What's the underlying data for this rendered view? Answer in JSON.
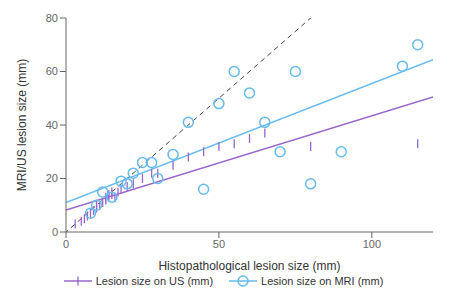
{
  "chart_data": {
    "type": "scatter",
    "xlabel": "Histopathological lesion size (mm)",
    "ylabel": "MRI/US lesion size (mm)",
    "xlim": [
      0,
      120
    ],
    "ylim": [
      0,
      80
    ],
    "xticks": [
      0,
      50,
      100
    ],
    "yticks": [
      0,
      20,
      40,
      60,
      80
    ],
    "legend": "bottom",
    "series": [
      {
        "name": "Lesion size on US (mm)",
        "color": "#9966cc",
        "marker": "vertical_line",
        "x": [
          3,
          5,
          6,
          7,
          8,
          9,
          10,
          10,
          11,
          12,
          13,
          13,
          14,
          14,
          15,
          15,
          16,
          17,
          18,
          20,
          22,
          25,
          28,
          30,
          35,
          40,
          45,
          50,
          55,
          60,
          65,
          80,
          115
        ],
        "values": [
          3,
          4,
          5,
          6,
          7,
          8,
          9,
          10,
          10,
          11,
          12,
          13,
          13,
          14,
          14,
          15,
          13,
          15,
          16,
          17,
          18,
          20,
          22,
          22,
          25,
          28,
          30,
          32,
          33,
          35,
          37,
          32,
          33
        ],
        "fit": {
          "x": [
            0,
            120
          ],
          "values": [
            8.1679,
            50.4875
          ]
        }
      },
      {
        "name": "Lesion size on MRI (mm)",
        "color": "#66bbee",
        "marker": "open_circle",
        "x": [
          8,
          10,
          12,
          15,
          18,
          20,
          22,
          25,
          28,
          30,
          35,
          40,
          45,
          50,
          55,
          60,
          65,
          70,
          75,
          80,
          90,
          110,
          115
        ],
        "values": [
          7,
          10,
          15,
          13,
          19,
          18,
          22,
          26,
          26,
          20,
          29,
          41,
          16,
          48,
          60,
          52,
          41,
          30,
          60,
          18,
          30,
          62,
          70
        ],
        "fit": {
          "x": [
            0,
            120
          ],
          "values": [
            11.0415,
            64.3676
          ]
        }
      }
    ],
    "reference_line": {
      "x": [
        -5,
        85
      ],
      "values": [
        -5,
        85
      ],
      "color": "#444444",
      "line_style": "dashed"
    }
  }
}
